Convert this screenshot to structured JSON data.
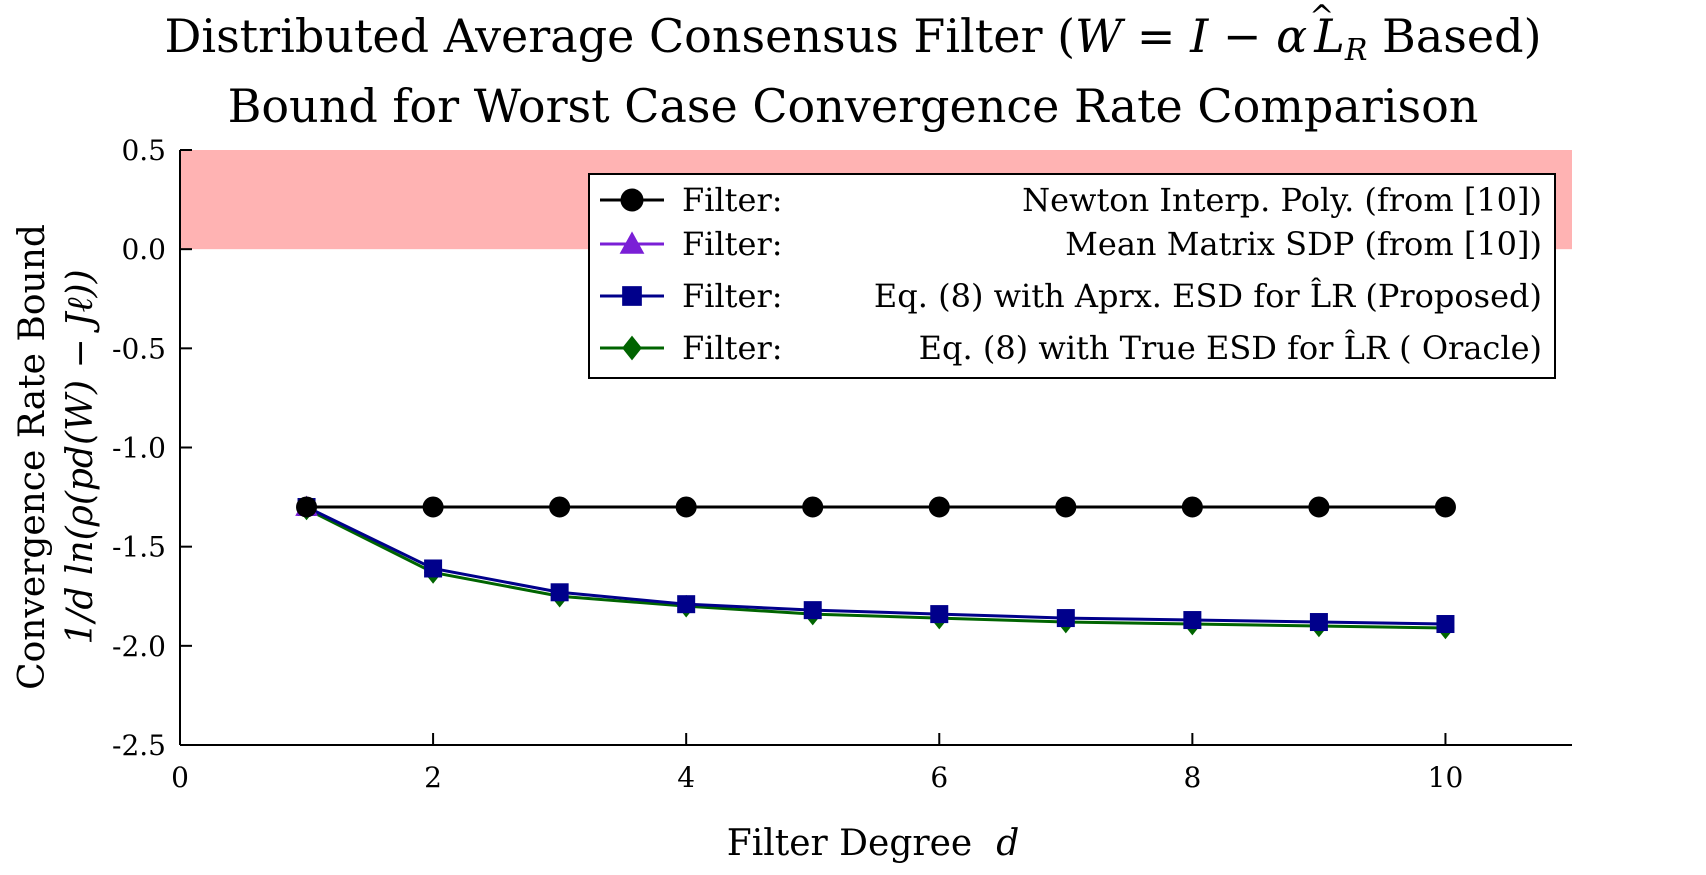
{
  "chart_data": {
    "type": "line",
    "title": "Distributed Average Consensus Filter (W = I − αL̂R Based)",
    "subtitle": "Bound for Worst Case Convergence Rate Comparison",
    "title_line1": {
      "prefix": "Distributed Average Consensus Filter (",
      "W": "W",
      "eq": " = ",
      "I": "I",
      "minus": " − ",
      "alpha": "α",
      "L": "L",
      "hat": "^",
      "R": "R",
      "suffix": " Based)"
    },
    "xlabel_text": "Filter Degree",
    "xlabel_var": "d",
    "ylabel_line1": "Convergence Rate Bound",
    "ylabel_line2": "1/d ln(ρ(pd(W) − Jℓ))",
    "xlim": [
      0,
      11
    ],
    "ylim": [
      -2.5,
      0.5
    ],
    "xticks": [
      0,
      2,
      4,
      6,
      8,
      10
    ],
    "xtick_labels": [
      "0",
      "2",
      "4",
      "6",
      "8",
      "10"
    ],
    "yticks": [
      0.5,
      0.0,
      -0.5,
      -1.0,
      -1.5,
      -2.0,
      -2.5
    ],
    "ytick_labels": [
      "0.5",
      "0.0",
      "-0.5",
      "-1.0",
      "-1.5",
      "-2.0",
      "-2.5"
    ],
    "shaded_region": {
      "y_from": 0.0,
      "y_to": 0.5,
      "color": "#ffb3b3"
    },
    "legend_position": "top-right",
    "x": [
      1,
      2,
      3,
      4,
      5,
      6,
      7,
      8,
      9,
      10
    ],
    "series": [
      {
        "name": "Filter: Newton Interp. Poly. (from [10])",
        "legend_prefix": "Filter:",
        "legend_desc": "Newton Interp. Poly. (from [10])",
        "color": "#000000",
        "marker": "circle",
        "values": [
          -1.3,
          -1.3,
          -1.3,
          -1.3,
          -1.3,
          -1.3,
          -1.3,
          -1.3,
          -1.3,
          -1.3
        ]
      },
      {
        "name": "Filter: Mean Matrix SDP (from [10])",
        "legend_prefix": "Filter:",
        "legend_desc": "Mean Matrix SDP (from [10])",
        "color": "#7a1fd6",
        "marker": "triangle",
        "values": [
          -1.3,
          null,
          null,
          null,
          null,
          null,
          null,
          null,
          null,
          null
        ]
      },
      {
        "name": "Filter: Eq. (8) with Aprx. ESD for L̂R (Proposed)",
        "legend_prefix": "Filter:",
        "legend_desc": "Eq. (8) with Aprx. ESD for L̂R (Proposed)",
        "color": "#00008b",
        "marker": "square",
        "values": [
          -1.3,
          -1.61,
          -1.73,
          -1.79,
          -1.82,
          -1.84,
          -1.86,
          -1.87,
          -1.88,
          -1.89
        ]
      },
      {
        "name": "Filter: Eq. (8) with True ESD for L̂R (Oracle)",
        "legend_prefix": "Filter:",
        "legend_desc": "Eq. (8) with True ESD for L̂R ( Oracle)",
        "color": "#006400",
        "marker": "diamond",
        "values": [
          -1.31,
          -1.63,
          -1.75,
          -1.8,
          -1.84,
          -1.86,
          -1.88,
          -1.89,
          -1.9,
          -1.91
        ]
      }
    ]
  }
}
